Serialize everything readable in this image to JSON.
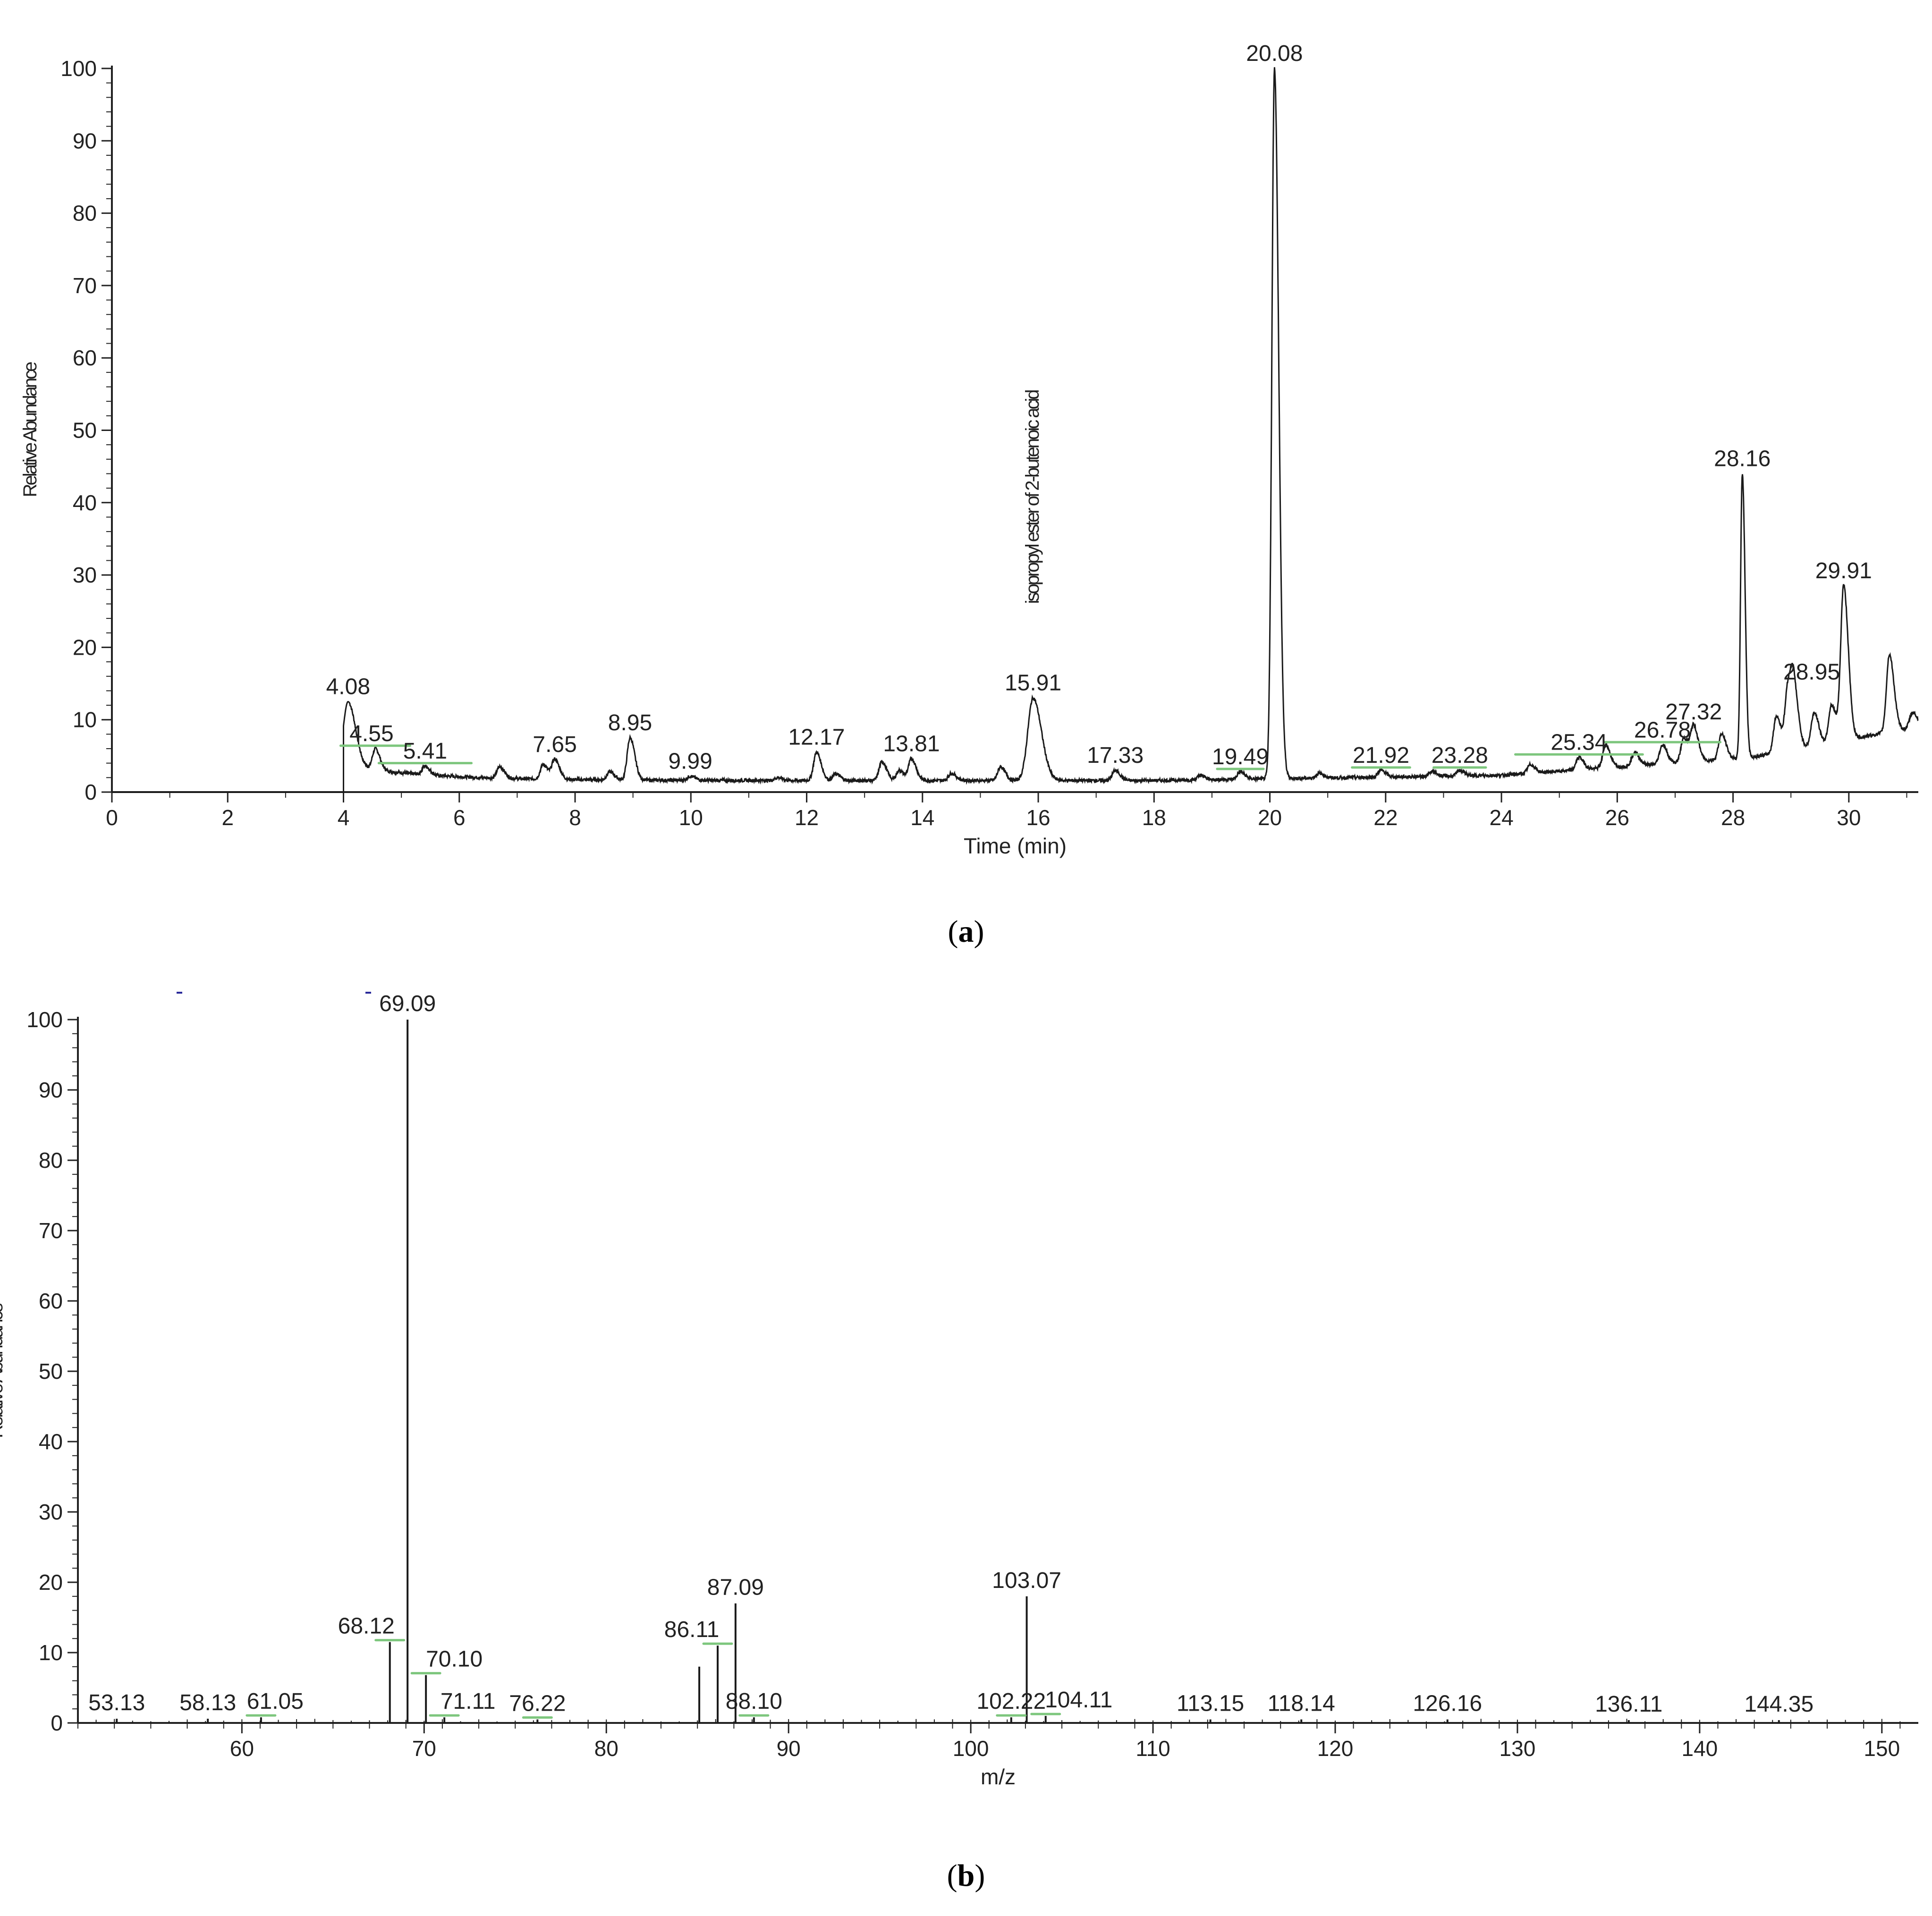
{
  "chart_data": [
    {
      "type": "line",
      "panel_label": "a",
      "xlabel": "Time (min)",
      "ylabel": "Relative Abundance",
      "xlim": [
        0,
        31.2
      ],
      "ylim": [
        0,
        100
      ],
      "xticks": [
        0,
        2,
        4,
        6,
        8,
        10,
        12,
        14,
        16,
        18,
        20,
        22,
        24,
        26,
        28,
        30
      ],
      "yticks": [
        0,
        10,
        20,
        30,
        40,
        50,
        60,
        70,
        80,
        90,
        100
      ],
      "grid": false,
      "annotation": {
        "text": "isopropyl ester of 2-butenoic acid",
        "x": 15.91
      },
      "peaks": [
        {
          "label": "4.08",
          "x": 4.08,
          "y": 12.5
        },
        {
          "label": "4.55",
          "x": 4.55,
          "y": 6.0
        },
        {
          "label": "5.41",
          "x": 5.41,
          "y": 3.6
        },
        {
          "label": "7.65",
          "x": 7.65,
          "y": 4.5
        },
        {
          "label": "8.95",
          "x": 8.95,
          "y": 7.5
        },
        {
          "label": "9.99",
          "x": 9.99,
          "y": 2.2
        },
        {
          "label": "12.17",
          "x": 12.17,
          "y": 5.5
        },
        {
          "label": "13.81",
          "x": 13.81,
          "y": 4.6
        },
        {
          "label": "15.91",
          "x": 15.91,
          "y": 13.0
        },
        {
          "label": "17.33",
          "x": 17.33,
          "y": 3.0
        },
        {
          "label": "19.49",
          "x": 19.49,
          "y": 2.8
        },
        {
          "label": "20.08",
          "x": 20.08,
          "y": 100
        },
        {
          "label": "21.92",
          "x": 21.92,
          "y": 3.0
        },
        {
          "label": "23.28",
          "x": 23.28,
          "y": 3.0
        },
        {
          "label": "25.34",
          "x": 25.34,
          "y": 4.8
        },
        {
          "label": "26.78",
          "x": 26.78,
          "y": 6.5
        },
        {
          "label": "27.32",
          "x": 27.32,
          "y": 9.0
        },
        {
          "label": "28.16",
          "x": 28.16,
          "y": 44.0
        },
        {
          "label": "28.95",
          "x": 28.95,
          "y": 14.5
        },
        {
          "label": "29.91",
          "x": 29.91,
          "y": 28.5
        }
      ],
      "minor_peaks": [
        {
          "x": 6.7,
          "y": 3.5
        },
        {
          "x": 7.45,
          "y": 3.8
        },
        {
          "x": 8.6,
          "y": 2.8
        },
        {
          "x": 11.5,
          "y": 2.0
        },
        {
          "x": 12.5,
          "y": 2.5
        },
        {
          "x": 13.3,
          "y": 4.2
        },
        {
          "x": 13.6,
          "y": 3.0
        },
        {
          "x": 14.5,
          "y": 2.6
        },
        {
          "x": 15.35,
          "y": 3.5
        },
        {
          "x": 18.8,
          "y": 2.3
        },
        {
          "x": 20.85,
          "y": 2.6
        },
        {
          "x": 22.8,
          "y": 2.8
        },
        {
          "x": 24.5,
          "y": 3.8
        },
        {
          "x": 25.8,
          "y": 6.5
        },
        {
          "x": 26.3,
          "y": 5.5
        },
        {
          "x": 27.15,
          "y": 7.5
        },
        {
          "x": 27.8,
          "y": 8.0
        },
        {
          "x": 28.75,
          "y": 10.5
        },
        {
          "x": 29.05,
          "y": 13.0
        },
        {
          "x": 29.4,
          "y": 11.0
        },
        {
          "x": 29.7,
          "y": 12.0
        },
        {
          "x": 30.7,
          "y": 19.0
        },
        {
          "x": 31.1,
          "y": 11.0
        }
      ]
    },
    {
      "type": "bar",
      "panel_label": "b",
      "xlabel": "m/z",
      "ylabel": "Relative Abundance",
      "xlim": [
        51,
        152
      ],
      "ylim": [
        0,
        100
      ],
      "xticks": [
        60,
        70,
        80,
        90,
        100,
        110,
        120,
        130,
        140,
        150
      ],
      "yticks": [
        0,
        10,
        20,
        30,
        40,
        50,
        60,
        70,
        80,
        90,
        100
      ],
      "grid": false,
      "peaks": [
        {
          "label": "53.13",
          "x": 53.13,
          "y": 0.6
        },
        {
          "label": "58.13",
          "x": 58.13,
          "y": 0.6
        },
        {
          "label": "61.05",
          "x": 61.05,
          "y": 0.8
        },
        {
          "label": "68.12",
          "x": 68.12,
          "y": 11.5
        },
        {
          "label": "69.09",
          "x": 69.09,
          "y": 100
        },
        {
          "label": "70.10",
          "x": 70.1,
          "y": 6.8
        },
        {
          "label": "71.11",
          "x": 71.11,
          "y": 0.8
        },
        {
          "label": "76.22",
          "x": 76.22,
          "y": 0.5
        },
        {
          "label": "86.11",
          "x": 86.11,
          "y": 11.0
        },
        {
          "label": "87.09",
          "x": 87.09,
          "y": 17.0
        },
        {
          "label": "88.10",
          "x": 88.1,
          "y": 0.8
        },
        {
          "label": "102.22",
          "x": 102.22,
          "y": 0.8
        },
        {
          "label": "103.07",
          "x": 103.07,
          "y": 18.0
        },
        {
          "label": "104.11",
          "x": 104.11,
          "y": 1.0
        },
        {
          "label": "113.15",
          "x": 113.15,
          "y": 0.5
        },
        {
          "label": "118.14",
          "x": 118.14,
          "y": 0.5
        },
        {
          "label": "126.16",
          "x": 126.16,
          "y": 0.5
        },
        {
          "label": "136.11",
          "x": 136.11,
          "y": 0.4
        },
        {
          "label": "144.35",
          "x": 144.35,
          "y": 0.4
        }
      ],
      "unlabeled_peaks": [
        {
          "x": 85.1,
          "y": 8.0
        }
      ]
    }
  ],
  "colors": {
    "trace": "#1a1a1a",
    "marker": "#7dc67d",
    "stray": "#2a2a9a"
  }
}
